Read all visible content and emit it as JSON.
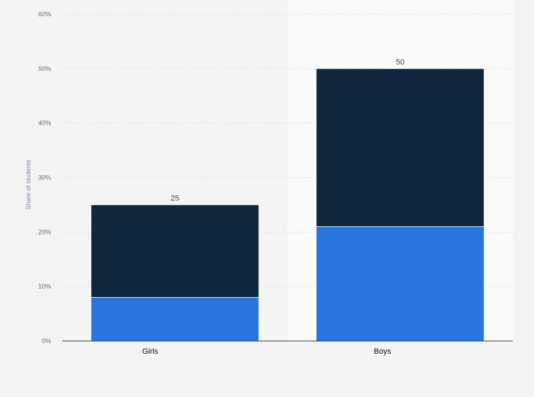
{
  "chart_data": {
    "type": "bar",
    "stacked": true,
    "categories": [
      "Girls",
      "Boys"
    ],
    "series": [
      {
        "color": "#2876dd",
        "values": [
          8,
          21
        ]
      },
      {
        "color": "#0f263d",
        "values": [
          17,
          29
        ]
      }
    ],
    "totals": [
      "25",
      "50"
    ],
    "ylabel": "Share of students",
    "ylim": [
      0,
      60
    ],
    "yticks": [
      {
        "value": 0,
        "label": "0%"
      },
      {
        "value": 10,
        "label": "10%"
      },
      {
        "value": 20,
        "label": "20%"
      },
      {
        "value": 30,
        "label": "30%"
      },
      {
        "value": 40,
        "label": "40%"
      },
      {
        "value": 50,
        "label": "50%"
      },
      {
        "value": 60,
        "label": "60%"
      }
    ],
    "grid": true,
    "highlight_category": "Boys",
    "colors": {
      "background": "#f4f4f4",
      "highlight_band": "#fafafa",
      "grid": "#cfd4da",
      "axis": "#2a3a4c"
    }
  }
}
